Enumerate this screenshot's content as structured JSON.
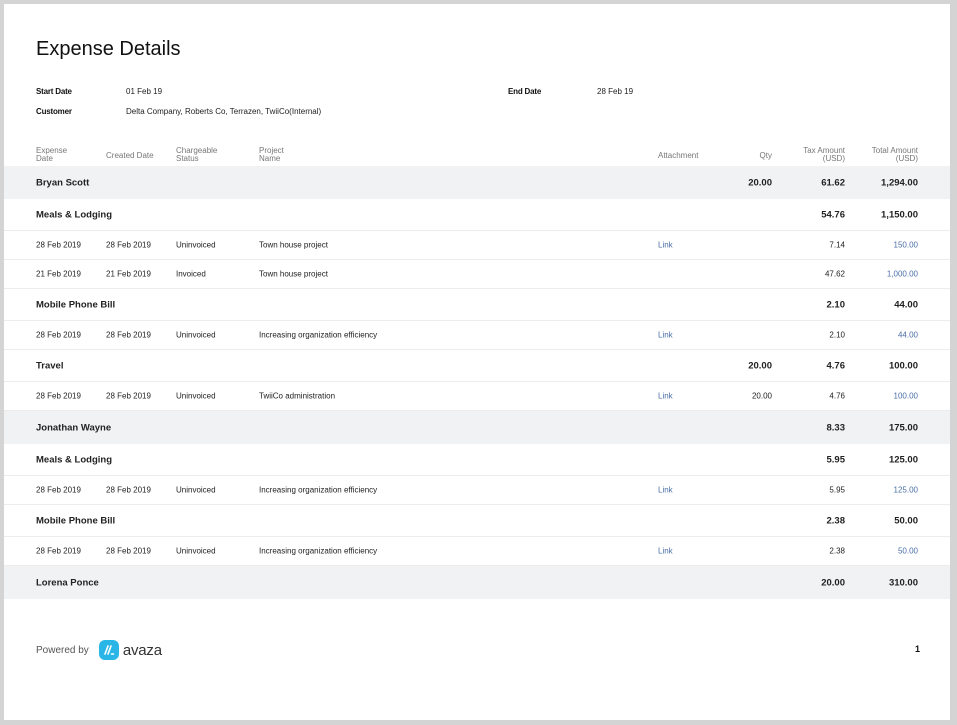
{
  "title": "Expense Details",
  "filters": {
    "start_date_label": "Start Date",
    "start_date": "01 Feb 19",
    "end_date_label": "End Date",
    "end_date": "28 Feb 19",
    "customer_label": "Customer",
    "customer": "Delta Company, Roberts Co, Terrazen, TwiiCo(Internal)"
  },
  "columns": {
    "expense_date_1": "Expense",
    "expense_date_2": "Date",
    "created_date": "Created Date",
    "chargeable_1": "Chargeable",
    "chargeable_2": "Status",
    "project_1": "Project",
    "project_2": "Name",
    "attachment": "Attachment",
    "qty": "Qty",
    "tax_1": "Tax Amount",
    "tax_2": "(USD)",
    "total_1": "Total Amount",
    "total_2": "(USD)"
  },
  "rows": [
    {
      "kind": "person",
      "name": "Bryan Scott",
      "qty": "20.00",
      "tax": "61.62",
      "total": "1,294.00"
    },
    {
      "kind": "category",
      "name": "Meals & Lodging",
      "qty": "",
      "tax": "54.76",
      "total": "1,150.00"
    },
    {
      "kind": "detail",
      "expense_date": "28 Feb 2019",
      "created_date": "28 Feb 2019",
      "status": "Uninvoiced",
      "project": "Town house project",
      "attachment": "Link",
      "qty": "",
      "tax": "7.14",
      "total": "150.00"
    },
    {
      "kind": "detail",
      "expense_date": "21 Feb 2019",
      "created_date": "21 Feb 2019",
      "status": "Invoiced",
      "project": "Town house project",
      "attachment": "",
      "qty": "",
      "tax": "47.62",
      "total": "1,000.00"
    },
    {
      "kind": "category",
      "name": "Mobile Phone Bill",
      "qty": "",
      "tax": "2.10",
      "total": "44.00"
    },
    {
      "kind": "detail",
      "expense_date": "28 Feb 2019",
      "created_date": "28 Feb 2019",
      "status": "Uninvoiced",
      "project": "Increasing organization efficiency",
      "attachment": "Link",
      "qty": "",
      "tax": "2.10",
      "total": "44.00"
    },
    {
      "kind": "category",
      "name": "Travel",
      "qty": "20.00",
      "tax": "4.76",
      "total": "100.00"
    },
    {
      "kind": "detail",
      "expense_date": "28 Feb 2019",
      "created_date": "28 Feb 2019",
      "status": "Uninvoiced",
      "project": "TwiiCo administration",
      "attachment": "Link",
      "qty": "20.00",
      "tax": "4.76",
      "total": "100.00"
    },
    {
      "kind": "person",
      "name": "Jonathan Wayne",
      "qty": "",
      "tax": "8.33",
      "total": "175.00"
    },
    {
      "kind": "category",
      "name": "Meals & Lodging",
      "qty": "",
      "tax": "5.95",
      "total": "125.00"
    },
    {
      "kind": "detail",
      "expense_date": "28 Feb 2019",
      "created_date": "28 Feb 2019",
      "status": "Uninvoiced",
      "project": "Increasing organization efficiency",
      "attachment": "Link",
      "qty": "",
      "tax": "5.95",
      "total": "125.00"
    },
    {
      "kind": "category",
      "name": "Mobile Phone Bill",
      "qty": "",
      "tax": "2.38",
      "total": "50.00"
    },
    {
      "kind": "detail",
      "expense_date": "28 Feb 2019",
      "created_date": "28 Feb 2019",
      "status": "Uninvoiced",
      "project": "Increasing organization efficiency",
      "attachment": "Link",
      "qty": "",
      "tax": "2.38",
      "total": "50.00"
    },
    {
      "kind": "person",
      "name": "Lorena Ponce",
      "qty": "",
      "tax": "20.00",
      "total": "310.00"
    }
  ],
  "footer": {
    "powered_by": "Powered by",
    "brand": "avaza",
    "page_number": "1"
  },
  "colors": {
    "link": "#4a6fa5",
    "group_background": "#f1f2f4",
    "brand": "#29b6e6"
  }
}
